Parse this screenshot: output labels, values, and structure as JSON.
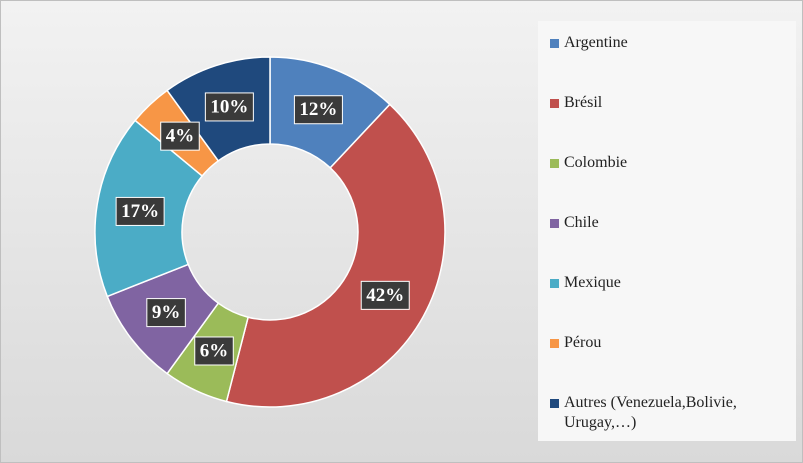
{
  "chart_data": {
    "type": "donut",
    "categories": [
      "Argentine",
      "Brésil",
      "Colombie",
      "Chile",
      "Mexique",
      "Pérou",
      "Autres (Venezuela,Bolivie, Urugay,…)"
    ],
    "values": [
      12,
      42,
      6,
      9,
      17,
      4,
      10
    ],
    "value_labels": [
      "12%",
      "42%",
      "6%",
      "9%",
      "17%",
      "4%",
      "10%"
    ],
    "colors": [
      "#4f81bd",
      "#c0504d",
      "#9bbb59",
      "#8064a2",
      "#4bacc6",
      "#f79646",
      "#1f497d"
    ],
    "legend": "right"
  }
}
